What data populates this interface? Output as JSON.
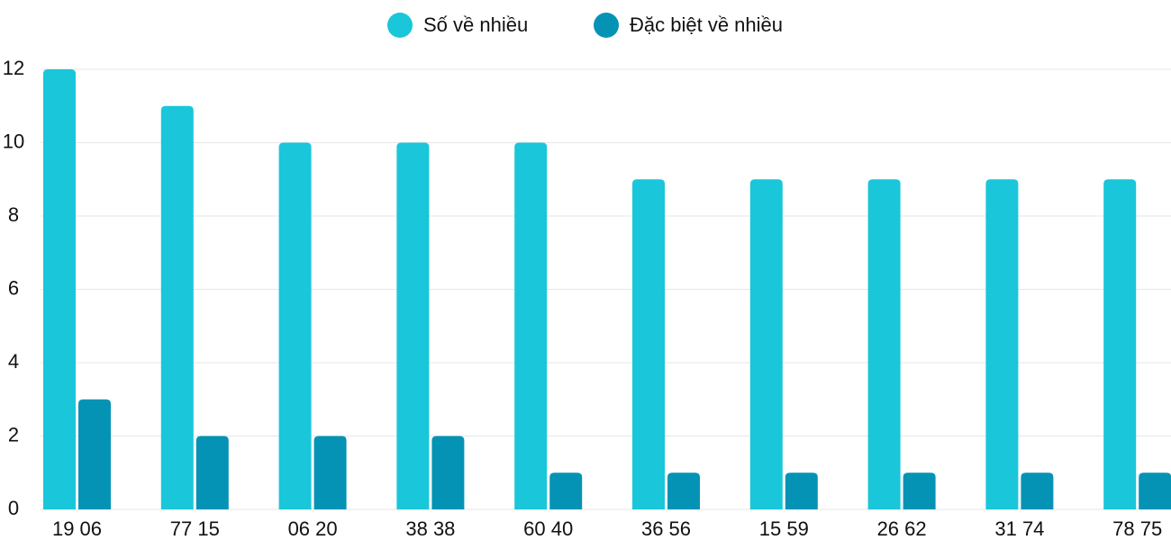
{
  "chart_data": {
    "type": "bar",
    "categories": [
      "19 06",
      "77 15",
      "06 20",
      "38 38",
      "60 40",
      "36 56",
      "15 59",
      "26 62",
      "31 74",
      "78 75"
    ],
    "series": [
      {
        "name": "Số về nhiều",
        "color": "#1ac6d9",
        "values": [
          12,
          11,
          10,
          10,
          10,
          9,
          9,
          9,
          9,
          9
        ]
      },
      {
        "name": "Đặc biệt về nhiều",
        "color": "#0593b5",
        "values": [
          3,
          2,
          2,
          2,
          1,
          1,
          1,
          1,
          1,
          1
        ]
      }
    ],
    "ylim": [
      0,
      12
    ],
    "yticks": [
      0,
      2,
      4,
      6,
      8,
      10,
      12
    ],
    "grid": true,
    "legend": "top"
  }
}
